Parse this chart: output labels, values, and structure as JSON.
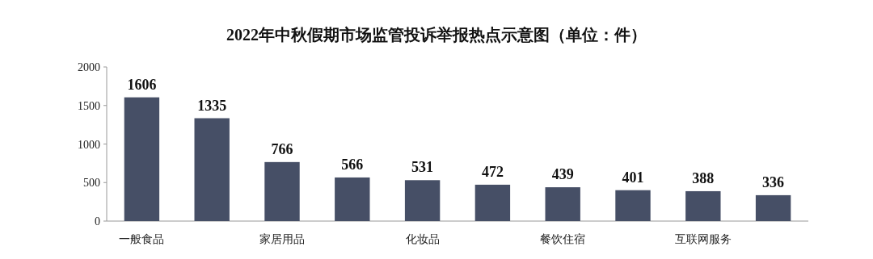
{
  "chart_data": {
    "type": "bar",
    "title": "2022年中秋假期市场监管投诉举报热点示意图（单位：件）",
    "categories": [
      "一般食品",
      null,
      "家居用品",
      null,
      "化妆品",
      null,
      "餐饮住宿",
      null,
      "互联网服务",
      null
    ],
    "values": [
      1606,
      1335,
      766,
      566,
      531,
      472,
      439,
      401,
      388,
      336
    ],
    "color": "#464f66",
    "ylim": [
      0,
      2000
    ],
    "yticks": [
      0,
      500,
      1000,
      1500,
      2000
    ],
    "data_labels": true,
    "grid": false
  }
}
